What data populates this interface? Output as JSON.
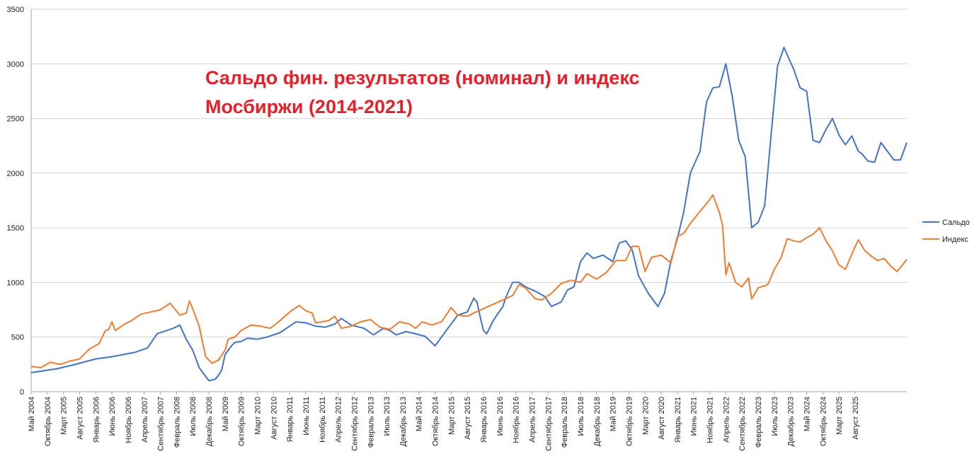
{
  "chart_data": {
    "type": "line",
    "title_lines": [
      "Сальдо фин. результатов (номинал) и индекс",
      "Мосбиржи (2014-2021)"
    ],
    "ylim": [
      0,
      3500
    ],
    "y_ticks": [
      0,
      500,
      1000,
      1500,
      2000,
      2500,
      3000,
      3500
    ],
    "grid": true,
    "legend_position": "right",
    "x_start": "2004-05",
    "x_end": "2025-12",
    "x_tick_labels": [
      "Май 2004",
      "Октябрь 2004",
      "Март 2005",
      "Август 2005",
      "Январь 2006",
      "Июнь 2006",
      "Ноябрь 2006",
      "Апрель 2007",
      "Сентябрь 2007",
      "Февраль 2008",
      "Июль 2008",
      "Декабрь 2008",
      "Май 2009",
      "Октябрь 2009",
      "Март 2010",
      "Август 2010",
      "Январь 2011",
      "Июнь 2011",
      "Ноябрь 2011",
      "Апрель 2012",
      "Сентябрь 2012",
      "Февраль 2013",
      "Июль 2013",
      "Декабрь 2013",
      "Май 2014",
      "Октябрь 2014",
      "Март 2015",
      "Август 2015",
      "Январь 2016",
      "Июнь 2016",
      "Ноябрь 2016",
      "Апрель 2017",
      "Сентябрь 2017",
      "Февраль 2018",
      "Июль 2018",
      "Декабрь 2018",
      "Май 2019",
      "Октябрь 2019",
      "Март 2020",
      "Август 2020",
      "Январь 2021",
      "Июнь 2021",
      "Ноябрь 2021",
      "Апрель 2022",
      "Сентябрь 2022",
      "Февраль 2023",
      "Июль 2023",
      "Декабрь 2023",
      "Май 2024",
      "Октябрь 2024",
      "Март 2025",
      "Август 2025"
    ],
    "series": [
      {
        "name": "Сальдо",
        "color": "#4472c4",
        "anchors": [
          [
            "2004-05",
            175
          ],
          [
            "2005-01",
            210
          ],
          [
            "2005-06",
            245
          ],
          [
            "2006-01",
            300
          ],
          [
            "2006-06",
            320
          ],
          [
            "2007-01",
            360
          ],
          [
            "2007-05",
            400
          ],
          [
            "2007-08",
            530
          ],
          [
            "2008-01",
            580
          ],
          [
            "2008-03",
            610
          ],
          [
            "2008-05",
            480
          ],
          [
            "2008-07",
            380
          ],
          [
            "2008-09",
            220
          ],
          [
            "2008-11",
            140
          ],
          [
            "2008-12",
            100
          ],
          [
            "2009-02",
            115
          ],
          [
            "2009-03",
            150
          ],
          [
            "2009-04",
            200
          ],
          [
            "2009-05",
            340
          ],
          [
            "2009-07",
            420
          ],
          [
            "2009-08",
            450
          ],
          [
            "2009-10",
            460
          ],
          [
            "2009-12",
            490
          ],
          [
            "2010-03",
            480
          ],
          [
            "2010-06",
            500
          ],
          [
            "2010-10",
            540
          ],
          [
            "2011-01",
            600
          ],
          [
            "2011-03",
            640
          ],
          [
            "2011-06",
            630
          ],
          [
            "2011-09",
            600
          ],
          [
            "2011-12",
            590
          ],
          [
            "2012-03",
            620
          ],
          [
            "2012-05",
            670
          ],
          [
            "2012-08",
            610
          ],
          [
            "2012-12",
            580
          ],
          [
            "2013-03",
            520
          ],
          [
            "2013-06",
            580
          ],
          [
            "2013-08",
            560
          ],
          [
            "2013-10",
            520
          ],
          [
            "2014-01",
            550
          ],
          [
            "2014-04",
            530
          ],
          [
            "2014-07",
            505
          ],
          [
            "2014-10",
            420
          ],
          [
            "2015-02",
            580
          ],
          [
            "2015-05",
            700
          ],
          [
            "2015-08",
            730
          ],
          [
            "2015-10",
            855
          ],
          [
            "2015-11",
            820
          ],
          [
            "2015-12",
            680
          ],
          [
            "2016-01",
            560
          ],
          [
            "2016-02",
            530
          ],
          [
            "2016-04",
            650
          ],
          [
            "2016-07",
            780
          ],
          [
            "2016-08",
            870
          ],
          [
            "2016-10",
            1000
          ],
          [
            "2016-12",
            1000
          ],
          [
            "2017-02",
            960
          ],
          [
            "2017-05",
            920
          ],
          [
            "2017-08",
            870
          ],
          [
            "2017-10",
            780
          ],
          [
            "2018-01",
            820
          ],
          [
            "2018-03",
            930
          ],
          [
            "2018-05",
            960
          ],
          [
            "2018-07",
            1190
          ],
          [
            "2018-09",
            1270
          ],
          [
            "2018-11",
            1220
          ],
          [
            "2019-02",
            1250
          ],
          [
            "2019-05",
            1190
          ],
          [
            "2019-07",
            1360
          ],
          [
            "2019-09",
            1380
          ],
          [
            "2019-11",
            1300
          ],
          [
            "2020-01",
            1060
          ],
          [
            "2020-04",
            900
          ],
          [
            "2020-07",
            780
          ],
          [
            "2020-09",
            900
          ],
          [
            "2020-11",
            1200
          ],
          [
            "2021-01",
            1400
          ],
          [
            "2021-03",
            1650
          ],
          [
            "2021-05",
            2000
          ],
          [
            "2021-08",
            2200
          ],
          [
            "2021-10",
            2650
          ],
          [
            "2021-12",
            2780
          ],
          [
            "2022-02",
            2790
          ],
          [
            "2022-04",
            3000
          ],
          [
            "2022-06",
            2700
          ],
          [
            "2022-08",
            2300
          ],
          [
            "2022-10",
            2150
          ],
          [
            "2022-12",
            1500
          ],
          [
            "2023-02",
            1550
          ],
          [
            "2023-04",
            1700
          ],
          [
            "2023-06",
            2350
          ],
          [
            "2023-08",
            2980
          ],
          [
            "2023-10",
            3150
          ],
          [
            "2024-01",
            2950
          ],
          [
            "2024-03",
            2780
          ],
          [
            "2024-05",
            2750
          ],
          [
            "2024-07",
            2300
          ],
          [
            "2024-09",
            2280
          ],
          [
            "2024-11",
            2400
          ],
          [
            "2025-01",
            2500
          ],
          [
            "2025-03",
            2350
          ],
          [
            "2025-05",
            2260
          ],
          [
            "2025-07",
            2340
          ],
          [
            "2025-09",
            2200
          ],
          [
            "2025-10",
            2180
          ],
          [
            "2025-12",
            2110
          ],
          [
            "2026-02",
            2100
          ],
          [
            "2026-04",
            2280
          ],
          [
            "2026-06",
            2200
          ],
          [
            "2026-08",
            2120
          ],
          [
            "2026-10",
            2120
          ],
          [
            "2026-12",
            2280
          ]
        ]
      },
      {
        "name": "Индекс",
        "color": "#ed7d31",
        "anchors": [
          [
            "2004-05",
            230
          ],
          [
            "2004-08",
            220
          ],
          [
            "2004-11",
            270
          ],
          [
            "2005-02",
            250
          ],
          [
            "2005-05",
            280
          ],
          [
            "2005-08",
            300
          ],
          [
            "2005-11",
            390
          ],
          [
            "2006-02",
            440
          ],
          [
            "2006-04",
            560
          ],
          [
            "2006-05",
            570
          ],
          [
            "2006-06",
            640
          ],
          [
            "2006-07",
            560
          ],
          [
            "2006-10",
            620
          ],
          [
            "2006-12",
            650
          ],
          [
            "2007-03",
            710
          ],
          [
            "2007-06",
            730
          ],
          [
            "2007-09",
            750
          ],
          [
            "2007-12",
            810
          ],
          [
            "2008-03",
            700
          ],
          [
            "2008-05",
            720
          ],
          [
            "2008-06",
            830
          ],
          [
            "2008-07",
            760
          ],
          [
            "2008-09",
            600
          ],
          [
            "2008-11",
            320
          ],
          [
            "2009-01",
            260
          ],
          [
            "2009-03",
            290
          ],
          [
            "2009-05",
            380
          ],
          [
            "2009-06",
            480
          ],
          [
            "2009-08",
            500
          ],
          [
            "2009-10",
            560
          ],
          [
            "2010-01",
            610
          ],
          [
            "2010-04",
            600
          ],
          [
            "2010-07",
            580
          ],
          [
            "2010-10",
            650
          ],
          [
            "2011-01",
            730
          ],
          [
            "2011-04",
            790
          ],
          [
            "2011-06",
            740
          ],
          [
            "2011-08",
            720
          ],
          [
            "2011-09",
            630
          ],
          [
            "2011-11",
            640
          ],
          [
            "2012-01",
            650
          ],
          [
            "2012-03",
            690
          ],
          [
            "2012-05",
            580
          ],
          [
            "2012-08",
            600
          ],
          [
            "2012-11",
            640
          ],
          [
            "2013-02",
            660
          ],
          [
            "2013-05",
            590
          ],
          [
            "2013-08",
            570
          ],
          [
            "2013-11",
            640
          ],
          [
            "2014-02",
            620
          ],
          [
            "2014-04",
            580
          ],
          [
            "2014-06",
            640
          ],
          [
            "2014-09",
            610
          ],
          [
            "2014-12",
            640
          ],
          [
            "2015-03",
            770
          ],
          [
            "2015-05",
            700
          ],
          [
            "2015-08",
            690
          ],
          [
            "2015-10",
            720
          ],
          [
            "2016-01",
            760
          ],
          [
            "2016-04",
            800
          ],
          [
            "2016-07",
            840
          ],
          [
            "2016-10",
            880
          ],
          [
            "2016-12",
            980
          ],
          [
            "2017-02",
            950
          ],
          [
            "2017-05",
            850
          ],
          [
            "2017-07",
            840
          ],
          [
            "2017-10",
            900
          ],
          [
            "2018-01",
            990
          ],
          [
            "2018-04",
            1020
          ],
          [
            "2018-07",
            1000
          ],
          [
            "2018-09",
            1080
          ],
          [
            "2018-12",
            1030
          ],
          [
            "2019-03",
            1090
          ],
          [
            "2019-06",
            1200
          ],
          [
            "2019-09",
            1200
          ],
          [
            "2019-11",
            1330
          ],
          [
            "2020-01",
            1330
          ],
          [
            "2020-03",
            1100
          ],
          [
            "2020-05",
            1230
          ],
          [
            "2020-08",
            1250
          ],
          [
            "2020-11",
            1180
          ],
          [
            "2021-01",
            1420
          ],
          [
            "2021-03",
            1450
          ],
          [
            "2021-05",
            1540
          ],
          [
            "2021-08",
            1650
          ],
          [
            "2021-10",
            1720
          ],
          [
            "2021-12",
            1800
          ],
          [
            "2022-02",
            1640
          ],
          [
            "2022-03",
            1520
          ],
          [
            "2022-04",
            1070
          ],
          [
            "2022-05",
            1180
          ],
          [
            "2022-07",
            1000
          ],
          [
            "2022-09",
            960
          ],
          [
            "2022-11",
            1040
          ],
          [
            "2022-12",
            850
          ],
          [
            "2023-02",
            950
          ],
          [
            "2023-05",
            980
          ],
          [
            "2023-07",
            1120
          ],
          [
            "2023-09",
            1220
          ],
          [
            "2023-11",
            1400
          ],
          [
            "2024-01",
            1380
          ],
          [
            "2024-03",
            1370
          ],
          [
            "2024-05",
            1410
          ],
          [
            "2024-07",
            1440
          ],
          [
            "2024-09",
            1500
          ],
          [
            "2024-11",
            1380
          ],
          [
            "2025-01",
            1290
          ],
          [
            "2025-03",
            1160
          ],
          [
            "2025-05",
            1120
          ],
          [
            "2025-07",
            1260
          ],
          [
            "2025-09",
            1390
          ],
          [
            "2025-11",
            1290
          ],
          [
            "2026-01",
            1240
          ],
          [
            "2026-03",
            1200
          ],
          [
            "2026-05",
            1220
          ],
          [
            "2026-07",
            1150
          ],
          [
            "2026-09",
            1100
          ],
          [
            "2026-12",
            1210
          ]
        ]
      }
    ]
  }
}
